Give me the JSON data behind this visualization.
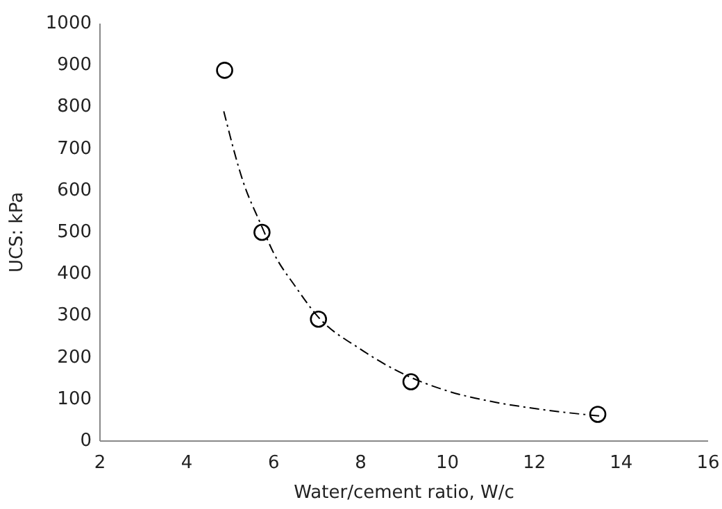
{
  "chart_data": {
    "type": "scatter",
    "xlabel": "Water/cement ratio, W/c",
    "ylabel": "UCS: kPa",
    "xlim": [
      2,
      16
    ],
    "xticks": [
      2,
      4,
      6,
      8,
      10,
      12,
      14,
      16
    ],
    "ylim": [
      0,
      1000
    ],
    "yticks": [
      0,
      100,
      200,
      300,
      400,
      500,
      600,
      700,
      800,
      900,
      1000
    ],
    "grid": false,
    "marker": "circle",
    "series": [
      {
        "type": "scatter",
        "color": "#000000",
        "x": [
          4.87,
          5.73,
          7.03,
          9.16,
          13.46
        ],
        "values": [
          888,
          500,
          292,
          142,
          64
        ]
      },
      {
        "type": "line",
        "color": "#000000",
        "line_style": "dashdot",
        "marker": "none",
        "x": [
          4.85,
          5.3,
          5.7,
          6,
          6.5,
          7,
          8,
          9,
          10,
          11,
          12,
          13.5
        ],
        "values": [
          790,
          620,
          520,
          450,
          370,
          300,
          220,
          160,
          120,
          95,
          78,
          60
        ]
      }
    ]
  }
}
